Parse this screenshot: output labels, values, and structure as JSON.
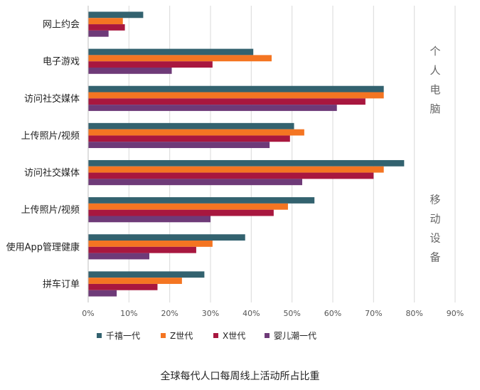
{
  "chart_data": {
    "type": "bar",
    "orientation": "horizontal",
    "categories": [
      "网上约会",
      "电子游戏",
      "访问社交媒体",
      "上传照片/视频",
      "访问社交媒体",
      "上传照片/视频",
      "使用App管理健康",
      "拼车订单"
    ],
    "series": [
      {
        "name": "千禧一代",
        "color": "#33626f",
        "values": [
          13.5,
          40.5,
          72.5,
          50.5,
          77.5,
          55.5,
          38.5,
          28.5
        ]
      },
      {
        "name": "Z世代",
        "color": "#f47522",
        "values": [
          8.5,
          45,
          72.5,
          53,
          72.5,
          49,
          30.5,
          23
        ]
      },
      {
        "name": "X世代",
        "color": "#a8173f",
        "values": [
          9,
          30.5,
          68,
          49.5,
          70,
          45.5,
          26.5,
          17
        ]
      },
      {
        "name": "婴儿潮一代",
        "color": "#6e3a78",
        "values": [
          5,
          20.5,
          61,
          44.5,
          52.5,
          30,
          15,
          7
        ]
      }
    ],
    "groups": [
      {
        "label": "个人电脑",
        "category_range": [
          0,
          3
        ]
      },
      {
        "label": "移动设备",
        "category_range": [
          4,
          7
        ]
      }
    ],
    "xlim": [
      0,
      90
    ],
    "ticks": [
      "0%",
      "10%",
      "20%",
      "30%",
      "40%",
      "50%",
      "60%",
      "70%",
      "80%",
      "90%"
    ],
    "grid": true,
    "legend_position": "bottom",
    "caption": "全球每代人口每周线上活动所占比重"
  }
}
